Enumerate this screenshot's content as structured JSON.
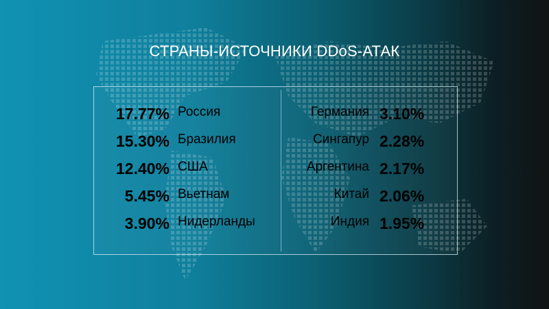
{
  "title": "СТРАНЫ-ИСТОЧНИКИ DDoS-АТАК",
  "left_column": [
    {
      "percent": "17.77%",
      "country": "Россия"
    },
    {
      "percent": "15.30%",
      "country": "Бразилия"
    },
    {
      "percent": "12.40%",
      "country": "США"
    },
    {
      "percent": "5.45%",
      "country": "Вьетнам"
    },
    {
      "percent": "3.90%",
      "country": "Нидерланды"
    }
  ],
  "right_column": [
    {
      "country": "Германия",
      "percent": "3.10%"
    },
    {
      "country": "Сингапур",
      "percent": "2.28%"
    },
    {
      "country": "Аргентина",
      "percent": "2.17%"
    },
    {
      "country": "Китай",
      "percent": "2.06%"
    },
    {
      "country": "Индия",
      "percent": "1.95%"
    }
  ],
  "colors": {
    "background_left": "#1192b3",
    "background_right": "#101314",
    "text": "#ffffff"
  }
}
